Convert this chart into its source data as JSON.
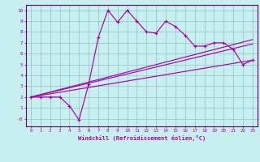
{
  "xlabel": "Windchill (Refroidissement éolien,°C)",
  "xlim": [
    -0.5,
    23.5
  ],
  "ylim": [
    -0.7,
    10.5
  ],
  "xticks": [
    0,
    1,
    2,
    3,
    4,
    5,
    6,
    7,
    8,
    9,
    10,
    11,
    12,
    13,
    14,
    15,
    16,
    17,
    18,
    19,
    20,
    21,
    22,
    23
  ],
  "yticks": [
    0,
    1,
    2,
    3,
    4,
    5,
    6,
    7,
    8,
    9,
    10
  ],
  "ytick_labels": [
    "-0",
    "1",
    "2",
    "3",
    "4",
    "5",
    "6",
    "7",
    "8",
    "9",
    "10"
  ],
  "bg_color": "#c8efef",
  "grid_color": "#99cccc",
  "line_color": "#aa00aa",
  "spine_color": "#660066",
  "line1_x": [
    0,
    1,
    2,
    3,
    4,
    5,
    6,
    7,
    8,
    9,
    10,
    11,
    12,
    13,
    14,
    15,
    16,
    17,
    18,
    19,
    20,
    21,
    22,
    23
  ],
  "line1_y": [
    2.0,
    2.0,
    2.0,
    2.0,
    1.2,
    -0.1,
    3.2,
    7.5,
    10.0,
    8.9,
    10.0,
    9.0,
    8.0,
    7.9,
    9.0,
    8.5,
    7.7,
    6.7,
    6.7,
    7.0,
    7.0,
    6.4,
    5.0,
    5.4
  ],
  "line2_x": [
    0,
    23
  ],
  "line2_y": [
    2.0,
    5.4
  ],
  "line3_x": [
    0,
    23
  ],
  "line3_y": [
    2.0,
    6.9
  ],
  "line4_x": [
    0,
    23
  ],
  "line4_y": [
    2.0,
    7.3
  ]
}
